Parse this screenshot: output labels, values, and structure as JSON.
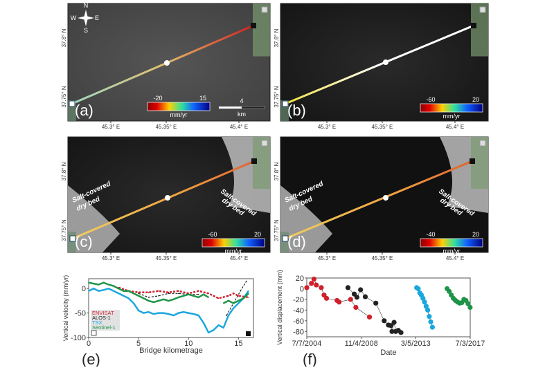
{
  "panels": [
    {
      "label": "(a)",
      "colorbar": {
        "min": "-20",
        "max": "15",
        "unit": "mm/yr"
      },
      "scalebar": {
        "value": "4",
        "unit": "km"
      },
      "compass": [
        "N",
        "S",
        "W",
        "E"
      ]
    },
    {
      "label": "(b)",
      "colorbar": {
        "min": "-60",
        "max": "20",
        "unit": "mm/yr"
      }
    },
    {
      "label": "(c)",
      "colorbar": {
        "min": "-60",
        "max": "20",
        "unit": "mm/yr"
      },
      "annotations": [
        "Salt-covered",
        "dry bed",
        "Salt-covered",
        "dry bed"
      ]
    },
    {
      "label": "(d)",
      "colorbar": {
        "min": "-40",
        "max": "20",
        "unit": "mm/yr"
      },
      "annotations": [
        "Salt-covered",
        "dry bed",
        "Salt-covered",
        "dry bed"
      ]
    },
    {
      "label": "(e)"
    },
    {
      "label": "(f)"
    }
  ],
  "map_axes": {
    "lon_ticks": [
      "45.3° E",
      "45.35° E",
      "45.4° E"
    ],
    "lat_ticks": [
      "37.8° N",
      "37.75° N"
    ]
  },
  "colors": {
    "ENVISAT": "#d0202a",
    "ALOS-1": "#222222",
    "TSX": "#1aa7de",
    "Sentinel-1": "#1e9448"
  },
  "chart_data": [
    {
      "type": "line",
      "xlabel": "Bridge kilometrage",
      "ylabel": "Vertical velocity (mm/yr)",
      "xlim": [
        0,
        16.5
      ],
      "ylim": [
        -100,
        20
      ],
      "xticks": [
        "0",
        "5",
        "10",
        "15"
      ],
      "yticks": [
        "0",
        "-50",
        "-100"
      ],
      "legend": "bottom-left",
      "series": [
        {
          "name": "ENVISAT",
          "x": [
            3,
            4,
            5,
            6,
            7,
            8,
            9,
            10,
            11,
            12,
            13,
            14,
            14.5,
            15,
            16
          ],
          "y": [
            2,
            -5,
            -8,
            -8,
            -5,
            -8,
            -5,
            -10,
            -5,
            -10,
            -20,
            -15,
            -10,
            -15,
            -18
          ]
        },
        {
          "name": "ALOS-1",
          "x": [
            5,
            6,
            7,
            8,
            9,
            10,
            11,
            13.8,
            14.5,
            15.2,
            15.8
          ],
          "y": [
            -10,
            -18,
            -15,
            -10,
            -10,
            -12,
            -12,
            -55,
            -30,
            -5,
            15
          ]
        },
        {
          "name": "TSX",
          "x": [
            0,
            0.5,
            1,
            1.5,
            2,
            2.5,
            3,
            3.5,
            4,
            4.5,
            5,
            5.5,
            6,
            6.5,
            7,
            7.5,
            8,
            8.5,
            9,
            9.5,
            10,
            10.5,
            11,
            11.5,
            12,
            12.5,
            13,
            13.5,
            14,
            14.5,
            15,
            15.5,
            16
          ],
          "y": [
            -5,
            0,
            -5,
            -3,
            0,
            -5,
            -10,
            -15,
            -20,
            -30,
            -45,
            -50,
            -48,
            -52,
            -50,
            -50,
            -52,
            -55,
            -50,
            -48,
            -50,
            -52,
            -55,
            -70,
            -90,
            -85,
            -75,
            -80,
            -55,
            -40,
            -30,
            -20,
            -5
          ]
        },
        {
          "name": "Sentinel-1",
          "x": [
            0,
            0.5,
            1,
            1.5,
            2,
            2.5,
            3,
            3.5,
            4,
            4.5,
            5,
            5.5,
            6,
            6.5,
            7,
            7.5,
            8,
            8.5,
            9,
            9.5,
            10,
            10.5,
            11,
            11.5,
            12,
            13.5,
            14,
            14.5,
            15,
            15.5,
            16
          ],
          "y": [
            12,
            10,
            8,
            12,
            8,
            5,
            0,
            -5,
            -5,
            -10,
            -15,
            -20,
            -25,
            -28,
            -25,
            -22,
            -25,
            -22,
            -18,
            -15,
            -12,
            -15,
            -18,
            -12,
            -18,
            -30,
            -25,
            -30,
            -25,
            -20,
            -10
          ]
        }
      ]
    },
    {
      "type": "scatter",
      "xlabel": "Date",
      "ylabel": "Vertical displacement (mm)",
      "xlim": [
        "2004-07-07",
        "2017-07-03"
      ],
      "ylim": [
        -90,
        20
      ],
      "xticks": [
        "7/7/2004",
        "11/4/2008",
        "3/5/2013",
        "7/3/2017"
      ],
      "yticks": [
        "20",
        "0",
        "-20",
        "-40",
        "-60",
        "-80"
      ],
      "series": [
        {
          "name": "ENVISAT",
          "x": [
            "2004-07-07",
            "2004-11-20",
            "2005-02-01",
            "2005-04-10",
            "2005-09-01",
            "2005-11-20",
            "2006-02-01",
            "2006-12-01",
            "2007-02-01",
            "2008-01-01",
            "2008-06-01",
            "2009-07-01"
          ],
          "y": [
            2,
            10,
            18,
            7,
            2,
            -12,
            -18,
            -22,
            -25,
            -20,
            -35,
            -53
          ]
        },
        {
          "name": "ALOS-1",
          "x": [
            "2007-10-15",
            "2008-04-15",
            "2008-07-01",
            "2008-10-15",
            "2009-03-01",
            "2010-01-01",
            "2010-09-01",
            "2011-01-01",
            "2011-03-15",
            "2011-04-15",
            "2011-06-15",
            "2011-08-01",
            "2011-10-15",
            "2012-01-01"
          ],
          "y": [
            2,
            -10,
            -16,
            -2,
            -15,
            -27,
            -60,
            -68,
            -69,
            -80,
            -63,
            -80,
            -78,
            -82
          ]
        },
        {
          "name": "TSX",
          "x": [
            "2013-04-01",
            "2013-05-15",
            "2013-07-01",
            "2013-08-15",
            "2013-10-01",
            "2013-11-15",
            "2014-01-01",
            "2014-02-15",
            "2014-04-01",
            "2014-05-15",
            "2014-07-01"
          ],
          "y": [
            2,
            0,
            -8,
            -12,
            -18,
            -25,
            -33,
            -40,
            -52,
            -62,
            -72
          ]
        },
        {
          "name": "Sentinel-1",
          "x": [
            "2015-09-01",
            "2015-11-01",
            "2016-01-01",
            "2016-03-01",
            "2016-05-01",
            "2016-07-01",
            "2016-09-01",
            "2016-11-01",
            "2017-01-01",
            "2017-03-01",
            "2017-05-01",
            "2017-07-01"
          ],
          "y": [
            0,
            -5,
            -12,
            -18,
            -22,
            -25,
            -27,
            -26,
            -20,
            -22,
            -28,
            -35
          ]
        }
      ]
    }
  ]
}
